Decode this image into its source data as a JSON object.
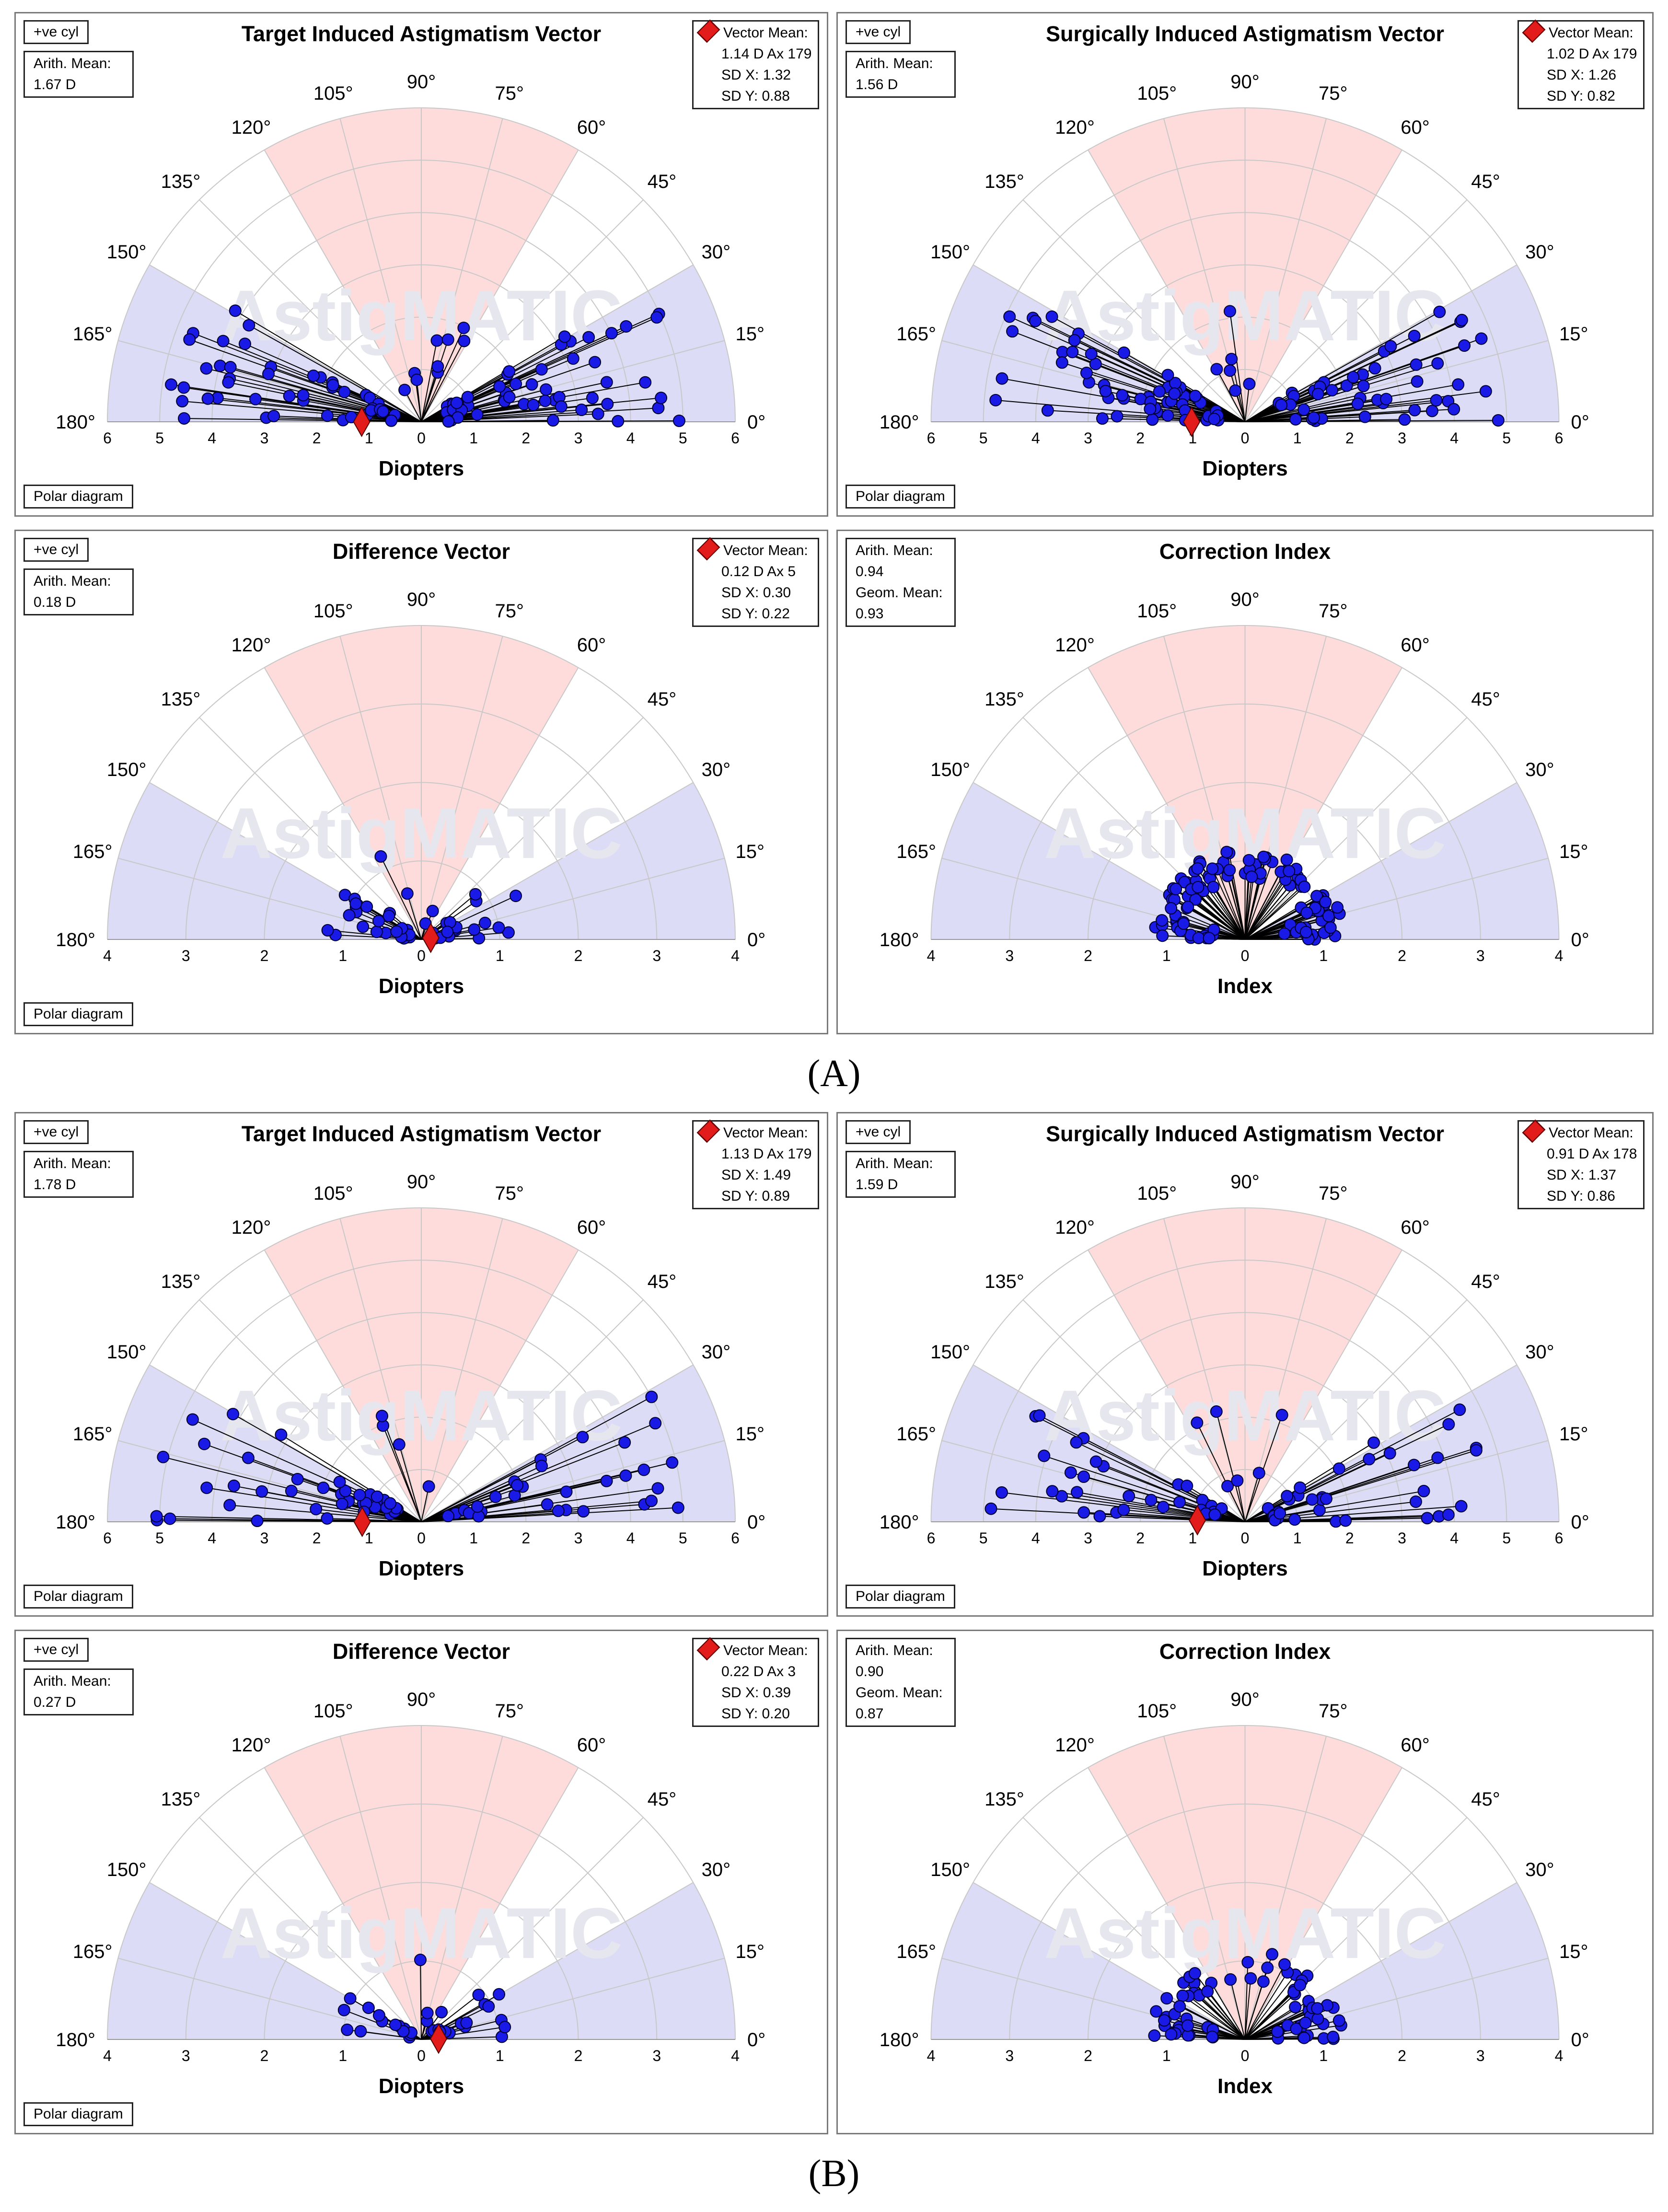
{
  "section_labels": [
    "(A)",
    "(B)"
  ],
  "chart_data": [
    {
      "id": "A1",
      "type": "scatter",
      "subtype": "polar-double-angle",
      "title": "Target Induced Astigmatism Vector",
      "xlabel": "Diopters",
      "range": 6,
      "ticks": [
        6,
        5,
        4,
        3,
        2,
        1,
        0,
        1,
        2,
        3,
        4,
        5,
        6
      ],
      "angle_labels": [
        "180°",
        "165°",
        "150°",
        "135°",
        "120°",
        "105°",
        "90°",
        "75°",
        "60°",
        "45°",
        "30°",
        "15°",
        "0°"
      ],
      "cyl_label": "+ve cyl",
      "stats": [
        "Arith. Mean:",
        "1.67 D"
      ],
      "vector_mean": [
        "Vector Mean:",
        "1.14 D Ax 179",
        "SD X: 1.32",
        "SD Y: 0.88"
      ],
      "footer": "Polar diagram",
      "mean_point": [
        -1.14,
        0
      ],
      "seed": 11,
      "pattern": "spread",
      "n": 110
    },
    {
      "id": "A2",
      "type": "scatter",
      "subtype": "polar-double-angle",
      "title": "Surgically Induced Astigmatism Vector",
      "xlabel": "Diopters",
      "range": 6,
      "ticks": [
        6,
        5,
        4,
        3,
        2,
        1,
        0,
        1,
        2,
        3,
        4,
        5,
        6
      ],
      "angle_labels": [
        "180°",
        "165°",
        "150°",
        "135°",
        "120°",
        "105°",
        "90°",
        "75°",
        "60°",
        "45°",
        "30°",
        "15°",
        "0°"
      ],
      "cyl_label": "+ve cyl",
      "stats": [
        "Arith. Mean:",
        "1.56 D"
      ],
      "vector_mean": [
        "Vector Mean:",
        "1.02 D Ax 179",
        "SD X: 1.26",
        "SD Y: 0.82"
      ],
      "footer": "Polar diagram",
      "mean_point": [
        -1.02,
        0
      ],
      "seed": 23,
      "pattern": "spread",
      "n": 110
    },
    {
      "id": "A3",
      "type": "scatter",
      "subtype": "polar-double-angle",
      "title": "Difference Vector",
      "xlabel": "Diopters",
      "range": 4,
      "ticks": [
        4,
        3,
        2,
        1,
        0,
        1,
        2,
        3,
        4
      ],
      "angle_labels": [
        "180°",
        "165°",
        "150°",
        "135°",
        "120°",
        "105°",
        "90°",
        "75°",
        "60°",
        "45°",
        "30°",
        "15°",
        "0°"
      ],
      "cyl_label": "+ve cyl",
      "stats": [
        "Arith. Mean:",
        "0.18 D"
      ],
      "vector_mean": [
        "Vector Mean:",
        "0.12 D Ax 5",
        "SD X: 0.30",
        "SD Y: 0.22"
      ],
      "footer": "Polar diagram",
      "mean_point": [
        0.12,
        0.02
      ],
      "seed": 37,
      "pattern": "small",
      "n": 50
    },
    {
      "id": "A4",
      "type": "scatter",
      "subtype": "polar-double-angle",
      "title": "Correction Index",
      "xlabel": "Index",
      "range": 4,
      "ticks": [
        4,
        3,
        2,
        1,
        0,
        1,
        2,
        3,
        4
      ],
      "angle_labels": [
        "180°",
        "165°",
        "150°",
        "135°",
        "120°",
        "105°",
        "90°",
        "75°",
        "60°",
        "45°",
        "30°",
        "15°",
        "0°"
      ],
      "cyl_label": "",
      "stats": [
        "Arith. Mean:",
        "0.94",
        "Geom. Mean:",
        "0.93"
      ],
      "vector_mean": null,
      "footer": "",
      "mean_point": null,
      "seed": 41,
      "pattern": "ring",
      "n": 110
    },
    {
      "id": "B1",
      "type": "scatter",
      "subtype": "polar-double-angle",
      "title": "Target Induced Astigmatism Vector",
      "xlabel": "Diopters",
      "range": 6,
      "ticks": [
        6,
        5,
        4,
        3,
        2,
        1,
        0,
        1,
        2,
        3,
        4,
        5,
        6
      ],
      "angle_labels": [
        "180°",
        "165°",
        "150°",
        "135°",
        "120°",
        "105°",
        "90°",
        "75°",
        "60°",
        "45°",
        "30°",
        "15°",
        "0°"
      ],
      "cyl_label": "+ve cyl",
      "stats": [
        "Arith. Mean:",
        "1.78 D"
      ],
      "vector_mean": [
        "Vector Mean:",
        "1.13 D Ax 179",
        "SD X: 1.49",
        "SD Y: 0.89"
      ],
      "footer": "Polar diagram",
      "mean_point": [
        -1.13,
        0
      ],
      "seed": 53,
      "pattern": "spread",
      "n": 75
    },
    {
      "id": "B2",
      "type": "scatter",
      "subtype": "polar-double-angle",
      "title": "Surgically Induced Astigmatism Vector",
      "xlabel": "Diopters",
      "range": 6,
      "ticks": [
        6,
        5,
        4,
        3,
        2,
        1,
        0,
        1,
        2,
        3,
        4,
        5,
        6
      ],
      "angle_labels": [
        "180°",
        "165°",
        "150°",
        "135°",
        "120°",
        "105°",
        "90°",
        "75°",
        "60°",
        "45°",
        "30°",
        "15°",
        "0°"
      ],
      "cyl_label": "+ve cyl",
      "stats": [
        "Arith. Mean:",
        "1.59 D"
      ],
      "vector_mean": [
        "Vector Mean:",
        "0.91 D Ax 178",
        "SD X: 1.37",
        "SD Y: 0.86"
      ],
      "footer": "Polar diagram",
      "mean_point": [
        -0.91,
        0.03
      ],
      "seed": 67,
      "pattern": "spread",
      "n": 75
    },
    {
      "id": "B3",
      "type": "scatter",
      "subtype": "polar-double-angle",
      "title": "Difference Vector",
      "xlabel": "Diopters",
      "range": 4,
      "ticks": [
        4,
        3,
        2,
        1,
        0,
        1,
        2,
        3,
        4
      ],
      "angle_labels": [
        "180°",
        "165°",
        "150°",
        "135°",
        "120°",
        "105°",
        "90°",
        "75°",
        "60°",
        "45°",
        "30°",
        "15°",
        "0°"
      ],
      "cyl_label": "+ve cyl",
      "stats": [
        "Arith. Mean:",
        "0.27 D"
      ],
      "vector_mean": [
        "Vector Mean:",
        "0.22 D Ax 3",
        "SD X: 0.39",
        "SD Y: 0.20"
      ],
      "footer": "Polar diagram",
      "mean_point": [
        0.22,
        0.01
      ],
      "seed": 79,
      "pattern": "small",
      "n": 35
    },
    {
      "id": "B4",
      "type": "scatter",
      "subtype": "polar-double-angle",
      "title": "Correction Index",
      "xlabel": "Index",
      "range": 4,
      "ticks": [
        4,
        3,
        2,
        1,
        0,
        1,
        2,
        3,
        4
      ],
      "angle_labels": [
        "180°",
        "165°",
        "150°",
        "135°",
        "120°",
        "105°",
        "90°",
        "75°",
        "60°",
        "45°",
        "30°",
        "15°",
        "0°"
      ],
      "cyl_label": "",
      "stats": [
        "Arith. Mean:",
        "0.90",
        "Geom. Mean:",
        "0.87"
      ],
      "vector_mean": null,
      "footer": "",
      "mean_point": null,
      "seed": 83,
      "pattern": "ring",
      "n": 75
    }
  ],
  "colors": {
    "point": "#1a1ae6",
    "point_stroke": "#000033",
    "mean": "#e21b1b",
    "wedge_red": "#ffdcdc",
    "wedge_blue": "#dcdcf7",
    "grid": "#c8c8c8",
    "panel_border": "#7a7a7a"
  },
  "watermark": "AstigMATIC"
}
